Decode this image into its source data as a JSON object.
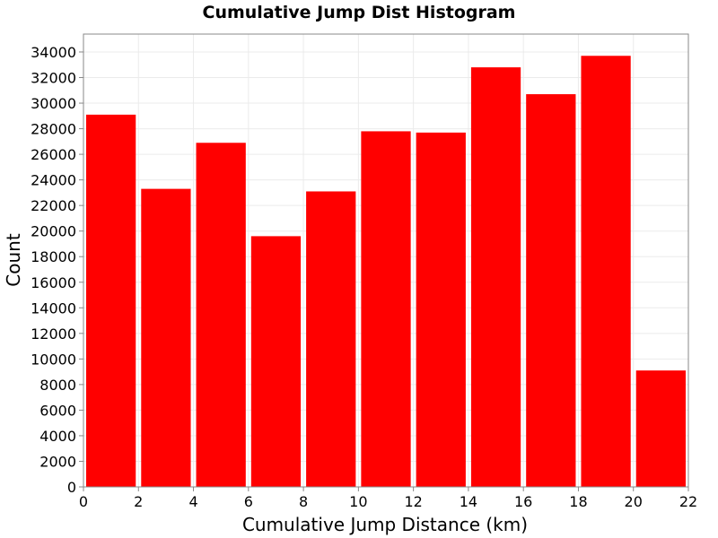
{
  "chart_data": {
    "type": "bar",
    "title": "Cumulative Jump Dist Histogram",
    "xlabel": "Cumulative Jump Distance (km)",
    "ylabel": "Count",
    "bins": [
      {
        "start": 0,
        "end": 2,
        "value": 29100
      },
      {
        "start": 2,
        "end": 4,
        "value": 23300
      },
      {
        "start": 4,
        "end": 6,
        "value": 26900
      },
      {
        "start": 6,
        "end": 8,
        "value": 19600
      },
      {
        "start": 8,
        "end": 10,
        "value": 23100
      },
      {
        "start": 10,
        "end": 12,
        "value": 27800
      },
      {
        "start": 12,
        "end": 14,
        "value": 27700
      },
      {
        "start": 14,
        "end": 16,
        "value": 32800
      },
      {
        "start": 16,
        "end": 18,
        "value": 30700
      },
      {
        "start": 18,
        "end": 20,
        "value": 33700
      },
      {
        "start": 20,
        "end": 22,
        "value": 9100
      }
    ],
    "xlim": [
      0,
      22
    ],
    "ylim": [
      0,
      35400
    ],
    "x_ticks": [
      "0",
      "2",
      "4",
      "6",
      "8",
      "10",
      "12",
      "14",
      "16",
      "18",
      "20",
      "22"
    ],
    "y_ticks": [
      "0",
      "2000",
      "4000",
      "6000",
      "8000",
      "10000",
      "12000",
      "14000",
      "16000",
      "18000",
      "20000",
      "22000",
      "24000",
      "26000",
      "28000",
      "30000",
      "32000",
      "34000"
    ],
    "grid": true,
    "bar_color": "#ff0000",
    "grid_color": "#ebebeb",
    "axis_color": "#888888"
  }
}
